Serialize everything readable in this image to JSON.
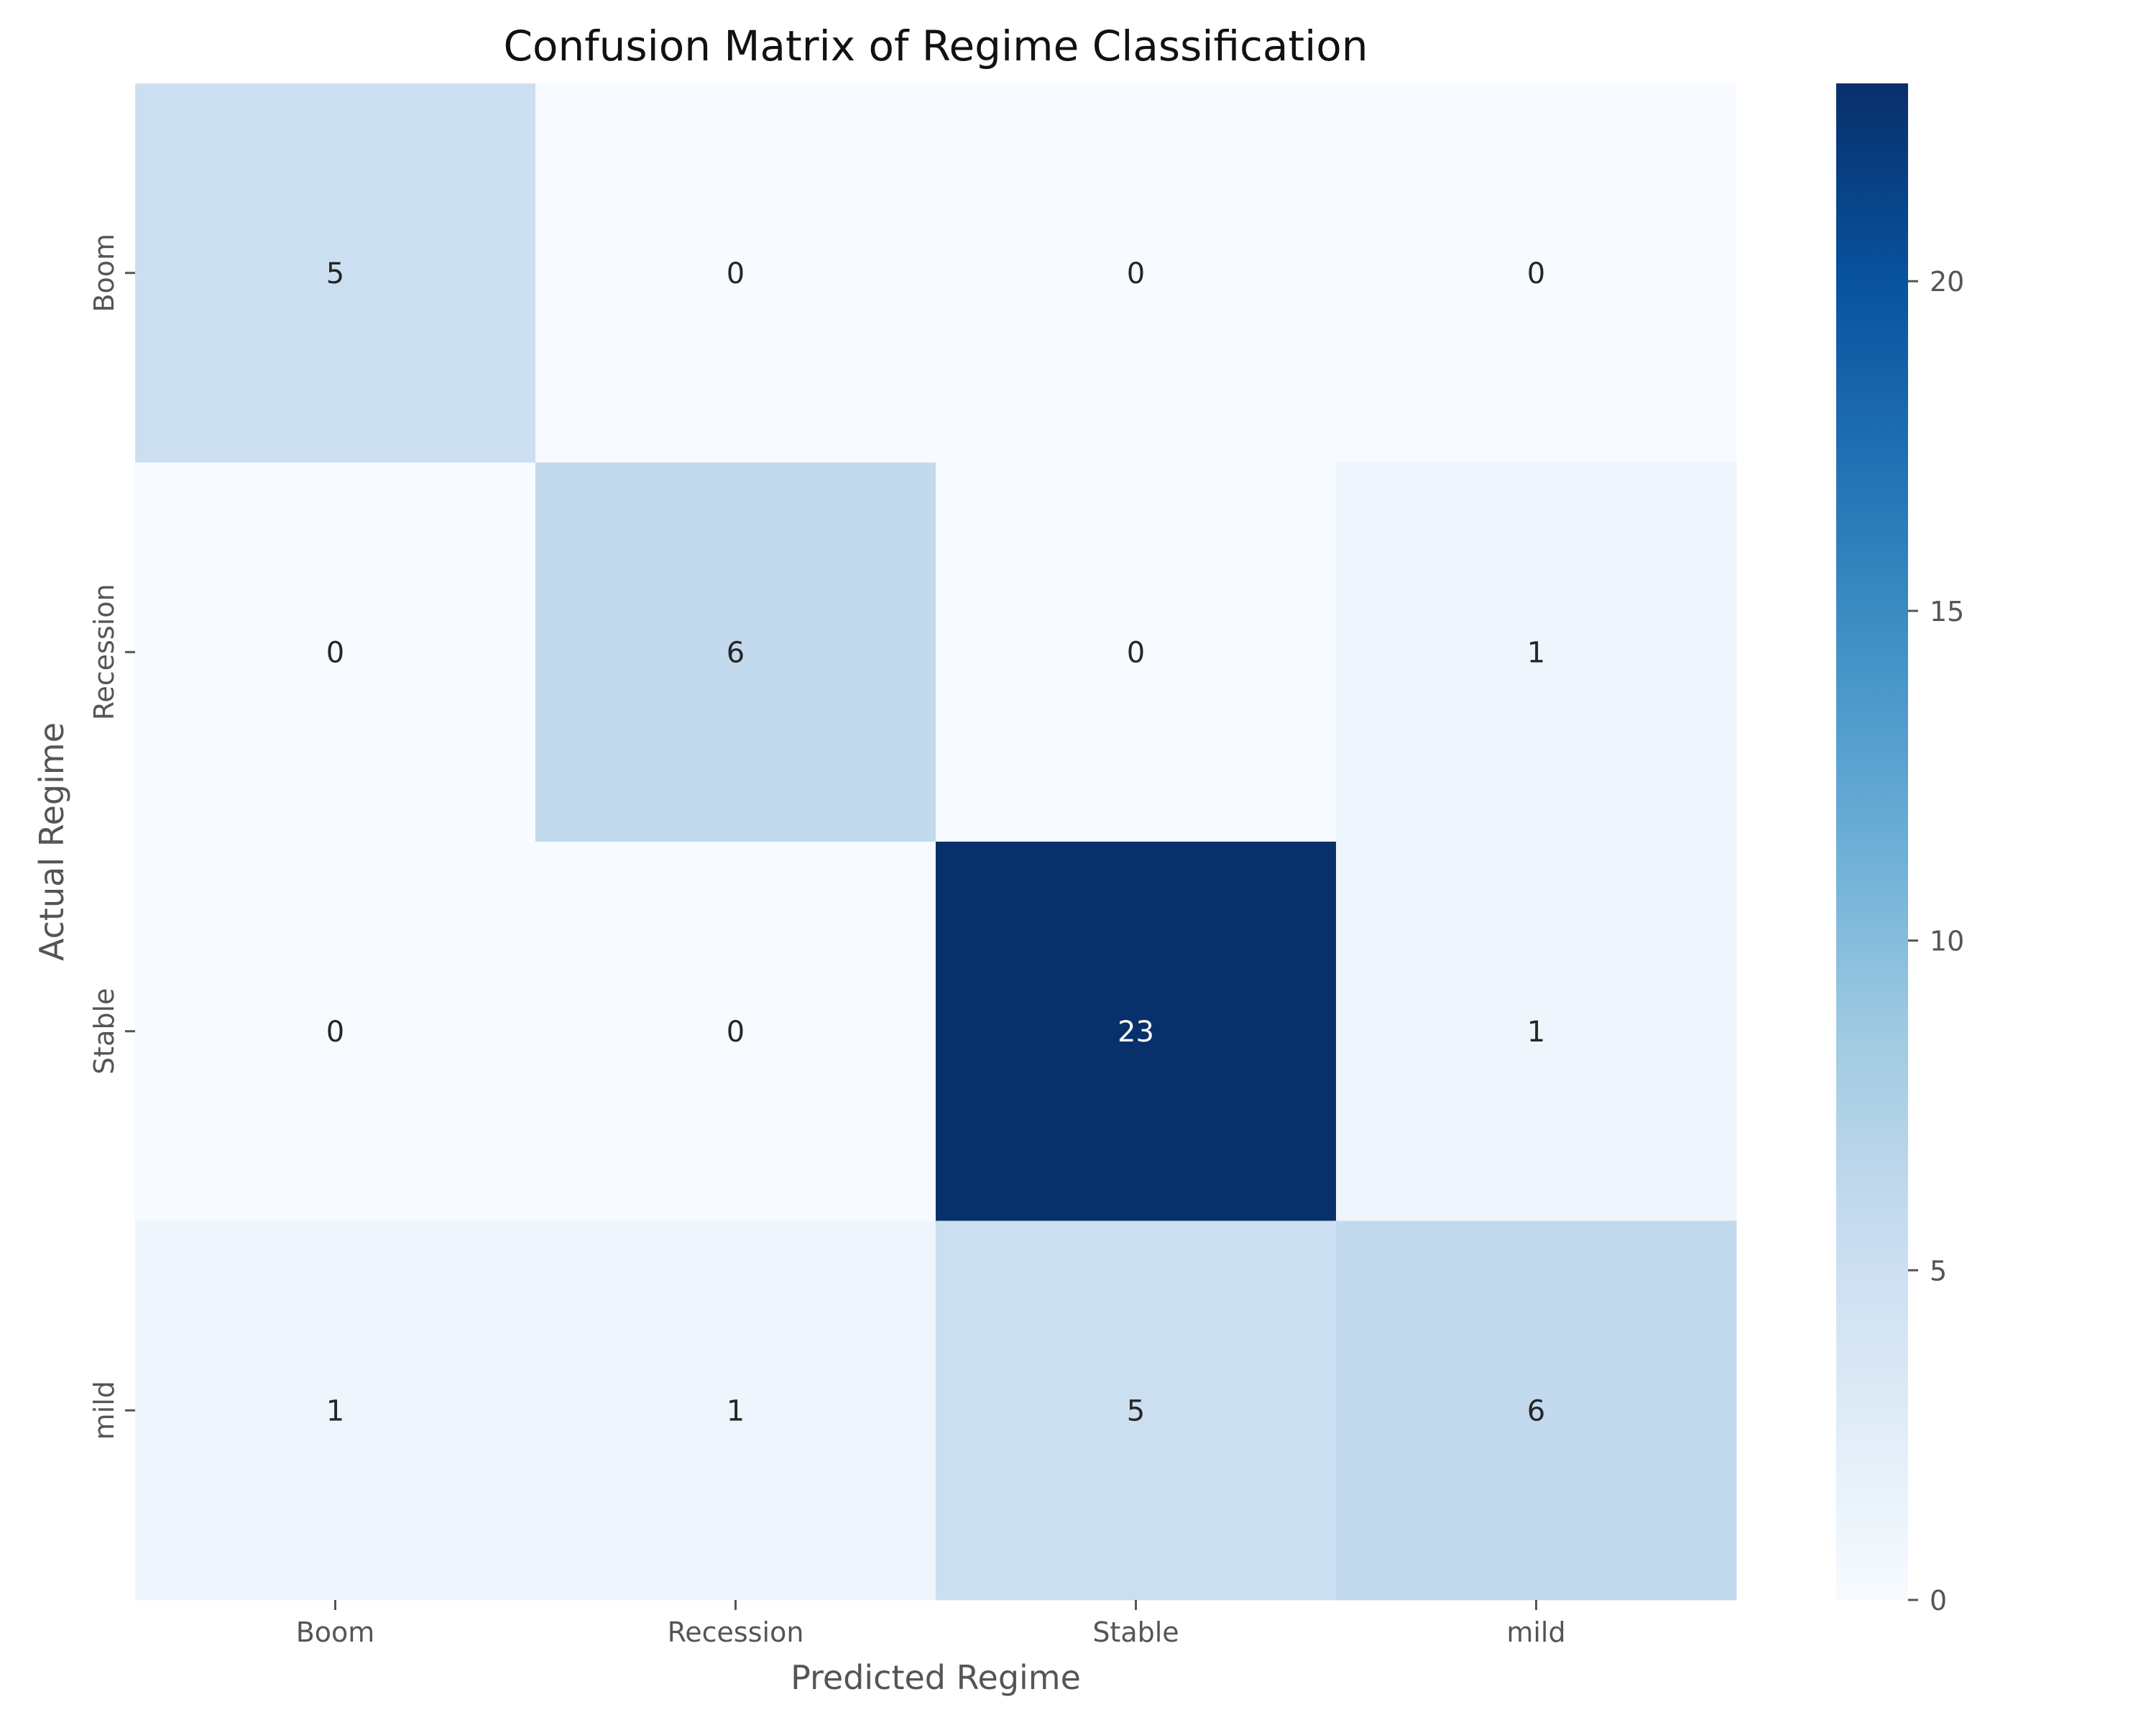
{
  "chart_data": {
    "type": "heatmap",
    "title": "Confusion Matrix of Regime Classification",
    "xlabel": "Predicted Regime",
    "ylabel": "Actual Regime",
    "x_categories": [
      "Boom",
      "Recession",
      "Stable",
      "mild"
    ],
    "y_categories": [
      "Boom",
      "Recession",
      "Stable",
      "mild"
    ],
    "values": [
      [
        5,
        0,
        0,
        0
      ],
      [
        0,
        6,
        0,
        1
      ],
      [
        0,
        0,
        23,
        1
      ],
      [
        1,
        1,
        5,
        6
      ]
    ],
    "colorbar": {
      "range": [
        0,
        23
      ],
      "ticks": [
        0,
        5,
        10,
        15,
        20
      ],
      "colormap": "Blues"
    },
    "grid": false,
    "annotations": true
  }
}
